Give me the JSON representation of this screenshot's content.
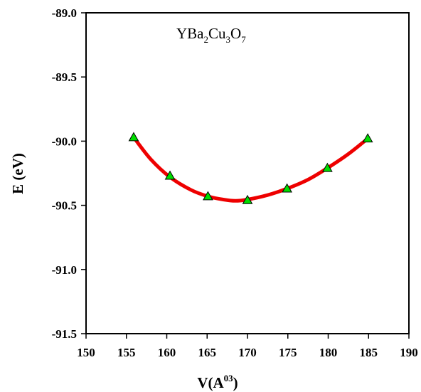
{
  "chart_data": {
    "type": "line",
    "title": {
      "parts": [
        "YBa",
        "2",
        "Cu",
        "3",
        "O",
        "7"
      ]
    },
    "xlabel": {
      "base": "V(A",
      "sup": "03",
      "close": ")"
    },
    "ylabel": "E (eV)",
    "xlim": [
      150,
      190
    ],
    "ylim": [
      -91.5,
      -89.0
    ],
    "xticks": [
      150,
      155,
      160,
      165,
      170,
      175,
      180,
      185,
      190
    ],
    "yticks": [
      -89.0,
      -89.5,
      -90.0,
      -90.5,
      -91.0,
      -91.5
    ],
    "ytick_labels": [
      "-89.0",
      "-89.5",
      "-90.0",
      "-90.5",
      "-91.0",
      "-91.5"
    ],
    "grid": false,
    "series": [
      {
        "kind": "markers",
        "marker": "triangle",
        "color": "#00dd00",
        "x": [
          155.9,
          160.4,
          165.1,
          170.0,
          174.9,
          179.9,
          184.9
        ],
        "y": [
          -89.97,
          -90.27,
          -90.43,
          -90.46,
          -90.37,
          -90.21,
          -89.98
        ]
      },
      {
        "kind": "fit-curve",
        "color": "#ee0000",
        "x": [
          155.9,
          158,
          160.4,
          163,
          165.1,
          167,
          168.5,
          170.0,
          172.5,
          174.9,
          177.5,
          179.9,
          182.5,
          184.9
        ],
        "y": [
          -89.97,
          -90.14,
          -90.28,
          -90.38,
          -90.43,
          -90.455,
          -90.465,
          -90.455,
          -90.42,
          -90.37,
          -90.3,
          -90.21,
          -90.1,
          -89.98
        ]
      }
    ]
  }
}
